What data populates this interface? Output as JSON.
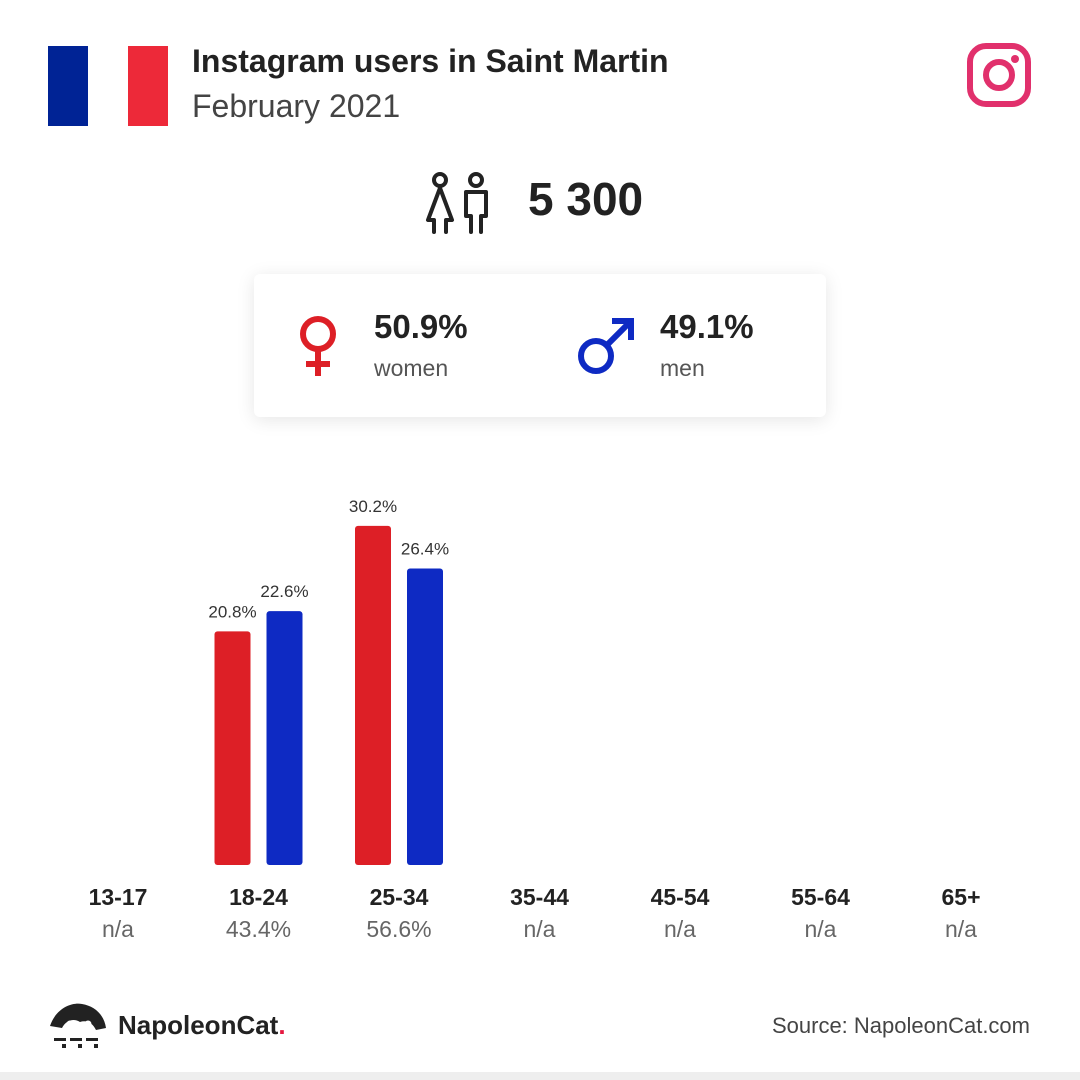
{
  "header": {
    "title": "Instagram users in Saint Martin",
    "subtitle": "February 2021",
    "flag_colors": [
      "#002395",
      "#ffffff",
      "#ED2939"
    ],
    "platform_icon": "instagram-icon",
    "platform_color": "#E1306C"
  },
  "summary": {
    "total": "5 300",
    "icon": "people-icon"
  },
  "gender": {
    "women": {
      "pct": "50.9%",
      "label": "women",
      "color": "#DD1F26",
      "icon": "female-icon"
    },
    "men": {
      "pct": "49.1%",
      "label": "men",
      "color": "#0E2AC3",
      "icon": "male-icon"
    }
  },
  "chart_data": {
    "type": "bar",
    "categories": [
      "13-17",
      "18-24",
      "25-34",
      "35-44",
      "45-54",
      "55-64",
      "65+"
    ],
    "totals": [
      "n/a",
      "43.4%",
      "56.6%",
      "n/a",
      "n/a",
      "n/a",
      "n/a"
    ],
    "series": [
      {
        "name": "women",
        "color": "#DD1F26",
        "values": [
          null,
          20.8,
          30.2,
          null,
          null,
          null,
          null
        ]
      },
      {
        "name": "men",
        "color": "#0E2AC3",
        "values": [
          null,
          22.6,
          26.4,
          null,
          null,
          null,
          null
        ]
      }
    ],
    "ylim": [
      0,
      32.5
    ],
    "grid": false
  },
  "footer": {
    "brand": "NapoleonCat",
    "brand_dot": ".",
    "brand_dot_color": "#E5173F",
    "source": "Source: NapoleonCat.com"
  }
}
